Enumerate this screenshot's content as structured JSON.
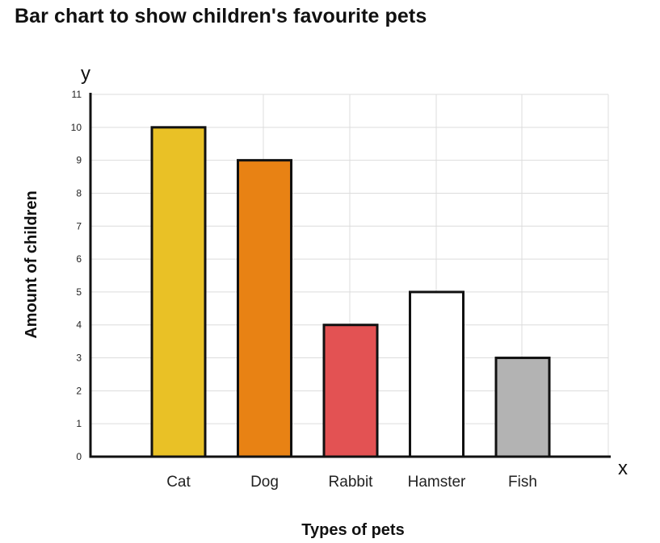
{
  "title": "Bar chart to show children's favourite pets",
  "chart_data": {
    "type": "bar",
    "categories": [
      "Cat",
      "Dog",
      "Rabbit",
      "Hamster",
      "Fish"
    ],
    "values": [
      10,
      9,
      4,
      5,
      3
    ],
    "colors": [
      "#e9c126",
      "#e88214",
      "#e35253",
      "#ffffff",
      "#b3b3b3"
    ],
    "xlabel": "Types of pets",
    "ylabel": "Amount of children",
    "x_axis_letter": "x",
    "y_axis_letter": "y",
    "ylim": [
      0,
      11
    ],
    "yticks": [
      "0",
      "1",
      "2",
      "3",
      "4",
      "5",
      "6",
      "7",
      "8",
      "9",
      "10",
      "11"
    ],
    "grid": true
  }
}
